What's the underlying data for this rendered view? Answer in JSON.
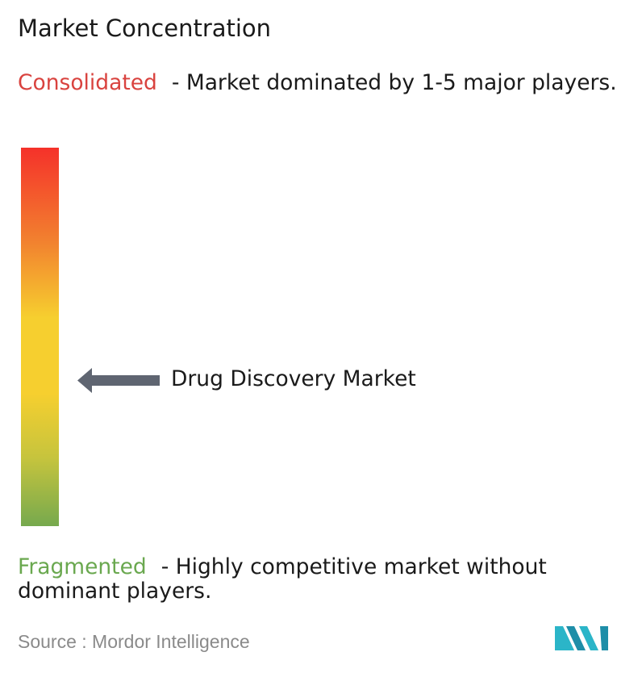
{
  "title": "Market Concentration",
  "consolidated": {
    "label": "Consolidated",
    "description": "- Market dominated by 1-5 major players."
  },
  "market": {
    "label": "Drug Discovery Market"
  },
  "fragmented": {
    "label": "Fragmented",
    "description": "- Highly competitive market without dominant players."
  },
  "source": {
    "label": "Source :",
    "name": "Mordor Intelligence"
  }
}
